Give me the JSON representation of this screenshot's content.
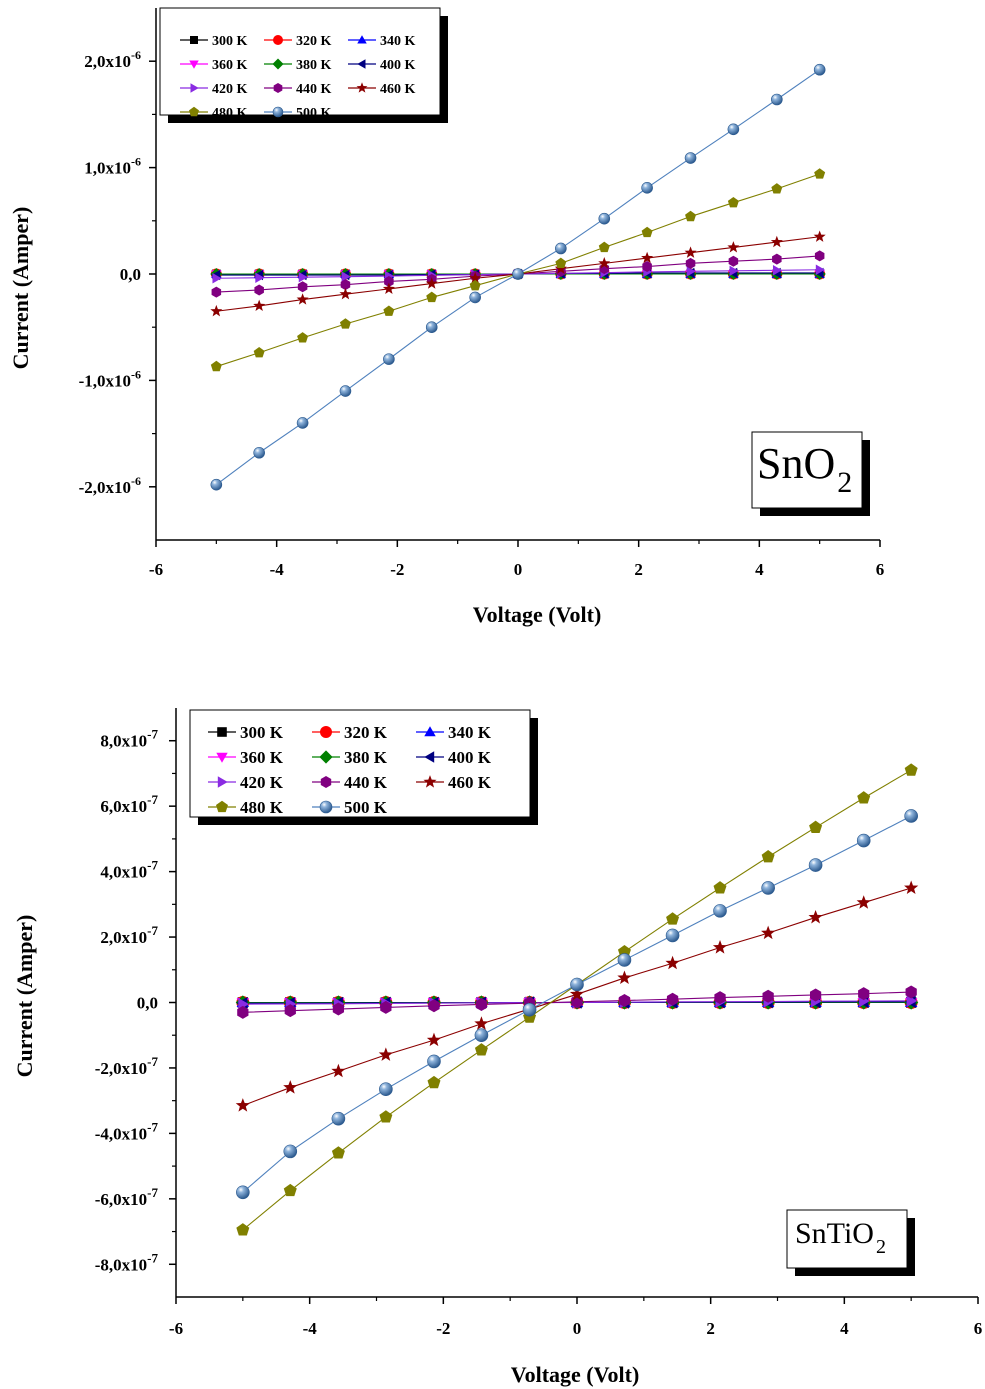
{
  "chart_data": [
    {
      "type": "line",
      "ylabel": "Current (Amper)",
      "xlabel": "Voltage (Volt)",
      "sample_label": {
        "base": "SnO",
        "sub": "2"
      },
      "xlim": [
        -6,
        6
      ],
      "ylim": [
        -2.5e-06,
        2.5e-06
      ],
      "x_ticks": [
        "-6",
        "-4",
        "-2",
        "0",
        "2",
        "4",
        "6"
      ],
      "y_ticks": [
        {
          "value": 2e-06,
          "mantissa": "2,0x10",
          "exp": "-6"
        },
        {
          "value": 1e-06,
          "mantissa": "1,0x10",
          "exp": "-6"
        },
        {
          "value": 0,
          "mantissa": "0,0",
          "exp": ""
        },
        {
          "value": -1e-06,
          "mantissa": "-1,0x10",
          "exp": "-6"
        },
        {
          "value": -2e-06,
          "mantissa": "-2,0x10",
          "exp": "-6"
        }
      ],
      "x": [
        -5,
        -4.29,
        -3.57,
        -2.86,
        -2.14,
        -1.43,
        -0.71,
        0,
        0.71,
        1.43,
        2.14,
        2.86,
        3.57,
        4.29,
        5
      ],
      "series": [
        {
          "name": "300 K",
          "color": "#000000",
          "marker": "square",
          "values": [
            0,
            0,
            0,
            0,
            0,
            0,
            0,
            0,
            0,
            0,
            0,
            0,
            0,
            0,
            0
          ]
        },
        {
          "name": "320 K",
          "color": "#ff0000",
          "marker": "circle",
          "values": [
            0,
            0,
            0,
            0,
            0,
            0,
            0,
            0,
            0,
            0,
            0,
            0,
            0,
            0,
            0
          ]
        },
        {
          "name": "340 K",
          "color": "#0000ff",
          "marker": "triangle-up",
          "values": [
            0,
            0,
            0,
            0,
            0,
            0,
            0,
            0,
            0,
            0,
            0,
            0,
            0,
            0,
            0
          ]
        },
        {
          "name": "360 K",
          "color": "#ff00ff",
          "marker": "triangle-down",
          "values": [
            0,
            0,
            0,
            0,
            0,
            0,
            0,
            0,
            0,
            0,
            0,
            0,
            0,
            0,
            0
          ]
        },
        {
          "name": "380 K",
          "color": "#008000",
          "marker": "diamond",
          "values": [
            0,
            0,
            0,
            0,
            0,
            0,
            0,
            0,
            0,
            0,
            0,
            0,
            0,
            0,
            0
          ]
        },
        {
          "name": "400 K",
          "color": "#000080",
          "marker": "triangle-left",
          "values": [
            -1e-08,
            -1e-08,
            -1e-08,
            -1e-08,
            -1e-08,
            -5e-09,
            -5e-09,
            0,
            5e-09,
            5e-09,
            1e-08,
            1e-08,
            1e-08,
            1e-08,
            1e-08
          ]
        },
        {
          "name": "420 K",
          "color": "#8a2be2",
          "marker": "triangle-right",
          "values": [
            -4e-08,
            -3.5e-08,
            -3e-08,
            -2.5e-08,
            -2e-08,
            -1.2e-08,
            -6e-09,
            0,
            6e-09,
            1.2e-08,
            2e-08,
            2.5e-08,
            3e-08,
            3.5e-08,
            4e-08
          ]
        },
        {
          "name": "440 K",
          "color": "#800080",
          "marker": "hexagon",
          "values": [
            -1.7e-07,
            -1.5e-07,
            -1.2e-07,
            -1e-07,
            -7e-08,
            -5e-08,
            -2e-08,
            0,
            2.5e-08,
            5e-08,
            7e-08,
            1e-07,
            1.2e-07,
            1.4e-07,
            1.7e-07
          ]
        },
        {
          "name": "460 K",
          "color": "#8b0000",
          "marker": "star",
          "values": [
            -3.5e-07,
            -3e-07,
            -2.4e-07,
            -1.9e-07,
            -1.4e-07,
            -9e-08,
            -4e-08,
            0,
            5e-08,
            1e-07,
            1.5e-07,
            2e-07,
            2.5e-07,
            3e-07,
            3.5e-07
          ]
        },
        {
          "name": "480 K",
          "color": "#808000",
          "marker": "pentagon",
          "values": [
            -8.7e-07,
            -7.4e-07,
            -6e-07,
            -4.7e-07,
            -3.5e-07,
            -2.2e-07,
            -1.1e-07,
            0,
            1e-07,
            2.5e-07,
            3.9e-07,
            5.4e-07,
            6.7e-07,
            8e-07,
            9.4e-07
          ]
        },
        {
          "name": "500 K",
          "color": "#4f81bd",
          "marker": "sphere",
          "values": [
            -1.98e-06,
            -1.68e-06,
            -1.4e-06,
            -1.1e-06,
            -8e-07,
            -5e-07,
            -2.2e-07,
            0,
            2.4e-07,
            5.2e-07,
            8.1e-07,
            1.09e-06,
            1.36e-06,
            1.64e-06,
            1.92e-06
          ]
        }
      ]
    },
    {
      "type": "line",
      "ylabel": "Current (Amper)",
      "xlabel": "Voltage (Volt)",
      "sample_label": {
        "base": "SnTiO",
        "sub": "2"
      },
      "xlim": [
        -6,
        6
      ],
      "ylim": [
        -9e-07,
        9e-07
      ],
      "x_ticks": [
        "-6",
        "-4",
        "-2",
        "0",
        "2",
        "4",
        "6"
      ],
      "y_ticks": [
        {
          "value": 8e-07,
          "mantissa": "8,0x10",
          "exp": "-7"
        },
        {
          "value": 6e-07,
          "mantissa": "6,0x10",
          "exp": "-7"
        },
        {
          "value": 4e-07,
          "mantissa": "4,0x10",
          "exp": "-7"
        },
        {
          "value": 2e-07,
          "mantissa": "2,0x10",
          "exp": "-7"
        },
        {
          "value": 0,
          "mantissa": "0,0",
          "exp": ""
        },
        {
          "value": -2e-07,
          "mantissa": "-2,0x10",
          "exp": "-7"
        },
        {
          "value": -4e-07,
          "mantissa": "-4,0x10",
          "exp": "-7"
        },
        {
          "value": -6e-07,
          "mantissa": "-6,0x10",
          "exp": "-7"
        },
        {
          "value": -8e-07,
          "mantissa": "-8,0x10",
          "exp": "-7"
        }
      ],
      "x": [
        -5,
        -4.29,
        -3.57,
        -2.86,
        -2.14,
        -1.43,
        -0.71,
        0,
        0.71,
        1.43,
        2.14,
        2.86,
        3.57,
        4.29,
        5
      ],
      "series": [
        {
          "name": "300 K",
          "color": "#000000",
          "marker": "square",
          "values": [
            0,
            0,
            0,
            0,
            0,
            0,
            0,
            0,
            0,
            0,
            0,
            0,
            0,
            0,
            0
          ]
        },
        {
          "name": "320 K",
          "color": "#ff0000",
          "marker": "circle",
          "values": [
            0,
            0,
            0,
            0,
            0,
            0,
            0,
            0,
            0,
            0,
            0,
            0,
            0,
            0,
            0
          ]
        },
        {
          "name": "340 K",
          "color": "#0000ff",
          "marker": "triangle-up",
          "values": [
            0,
            0,
            0,
            0,
            0,
            0,
            0,
            0,
            0,
            0,
            0,
            0,
            0,
            0,
            0
          ]
        },
        {
          "name": "360 K",
          "color": "#ff00ff",
          "marker": "triangle-down",
          "values": [
            0,
            0,
            0,
            0,
            0,
            0,
            0,
            0,
            0,
            0,
            0,
            0,
            0,
            0,
            0
          ]
        },
        {
          "name": "380 K",
          "color": "#008000",
          "marker": "diamond",
          "values": [
            0,
            0,
            0,
            0,
            0,
            0,
            0,
            0,
            0,
            0,
            0,
            0,
            0,
            0,
            0
          ]
        },
        {
          "name": "400 K",
          "color": "#000080",
          "marker": "triangle-left",
          "values": [
            -2e-09,
            -2e-09,
            -1.5e-09,
            -1e-09,
            -1e-09,
            -5e-10,
            0,
            0,
            0,
            5e-10,
            1e-09,
            1e-09,
            1.5e-09,
            2e-09,
            2e-09
          ]
        },
        {
          "name": "420 K",
          "color": "#8a2be2",
          "marker": "triangle-right",
          "values": [
            -5e-09,
            -4.5e-09,
            -4e-09,
            -3e-09,
            -2e-09,
            -1e-09,
            -5e-10,
            0,
            1e-09,
            2e-09,
            2.5e-09,
            3e-09,
            4e-09,
            4.5e-09,
            5e-09
          ]
        },
        {
          "name": "440 K",
          "color": "#800080",
          "marker": "hexagon",
          "values": [
            -3e-08,
            -2.5e-08,
            -2e-08,
            -1.5e-08,
            -1e-08,
            -6e-09,
            -2e-09,
            2e-09,
            6e-09,
            1e-08,
            1.5e-08,
            1.9e-08,
            2.3e-08,
            2.7e-08,
            3.2e-08
          ]
        },
        {
          "name": "460 K",
          "color": "#8b0000",
          "marker": "star",
          "values": [
            -3.15e-07,
            -2.6e-07,
            -2.1e-07,
            -1.6e-07,
            -1.15e-07,
            -6.5e-08,
            -2e-08,
            2.5e-08,
            7.5e-08,
            1.2e-07,
            1.68e-07,
            2.12e-07,
            2.6e-07,
            3.05e-07,
            3.5e-07
          ]
        },
        {
          "name": "480 K",
          "color": "#808000",
          "marker": "pentagon",
          "values": [
            -6.95e-07,
            -5.75e-07,
            -4.6e-07,
            -3.5e-07,
            -2.45e-07,
            -1.45e-07,
            -4.5e-08,
            5.5e-08,
            1.55e-07,
            2.55e-07,
            3.5e-07,
            4.45e-07,
            5.35e-07,
            6.25e-07,
            7.1e-07
          ]
        },
        {
          "name": "500 K",
          "color": "#4f81bd",
          "marker": "sphere",
          "values": [
            -5.8e-07,
            -4.55e-07,
            -3.55e-07,
            -2.65e-07,
            -1.8e-07,
            -1e-07,
            -2.2e-08,
            5.5e-08,
            1.3e-07,
            2.05e-07,
            2.8e-07,
            3.5e-07,
            4.2e-07,
            4.95e-07,
            5.7e-07
          ]
        }
      ]
    }
  ]
}
